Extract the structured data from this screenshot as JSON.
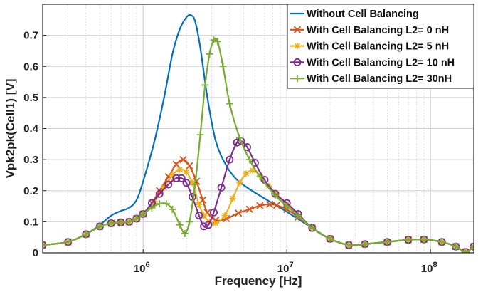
{
  "chart_data": {
    "type": "line",
    "xscale": "log",
    "xlabel": "Frequency [Hz]",
    "ylabel": "Vpk2pk(Cell1) [V]",
    "xlim": [
      200000,
      200000000
    ],
    "ylim": [
      0,
      0.8
    ],
    "grid": true,
    "legend_position": "top-right",
    "x_ticks": [
      {
        "value": 1000000,
        "base": "10",
        "exp": "6"
      },
      {
        "value": 10000000,
        "base": "10",
        "exp": "7"
      },
      {
        "value": 100000000,
        "base": "10",
        "exp": "8"
      }
    ],
    "y_ticks": [
      {
        "value": 0,
        "label": "0"
      },
      {
        "value": 0.1,
        "label": "0.1"
      },
      {
        "value": 0.2,
        "label": "0.2"
      },
      {
        "value": 0.3,
        "label": "0.3"
      },
      {
        "value": 0.4,
        "label": "0.4"
      },
      {
        "value": 0.5,
        "label": "0.5"
      },
      {
        "value": 0.6,
        "label": "0.6"
      },
      {
        "value": 0.7,
        "label": "0.7"
      }
    ],
    "series": [
      {
        "name": "Without Cell Balancing",
        "color": "#0072BD",
        "marker": "none",
        "x": [
          200000,
          300000,
          400000,
          500000,
          600000,
          700000,
          800000,
          900000,
          1000000,
          1200000,
          1400000,
          1600000,
          1800000,
          2000000,
          2150000,
          2300000,
          2500000,
          2800000,
          3200000,
          3800000,
          4500000,
          5500000,
          7000000,
          9000000,
          11000000,
          15000000,
          20000000,
          27000000,
          35000000,
          50000000,
          70000000,
          90000000,
          120000000,
          150000000,
          175000000,
          200000000
        ],
        "y": [
          0.025,
          0.035,
          0.06,
          0.09,
          0.12,
          0.135,
          0.145,
          0.17,
          0.23,
          0.36,
          0.5,
          0.64,
          0.72,
          0.758,
          0.765,
          0.745,
          0.66,
          0.5,
          0.36,
          0.28,
          0.235,
          0.205,
          0.175,
          0.145,
          0.12,
          0.08,
          0.045,
          0.025,
          0.028,
          0.035,
          0.042,
          0.043,
          0.035,
          0.02,
          0.003,
          0.02
        ]
      },
      {
        "name": "With Cell Balancing L2= 0 nH",
        "color": "#D95319",
        "marker": "x",
        "x": [
          200000,
          300000,
          400000,
          500000,
          600000,
          700000,
          800000,
          900000,
          1000000,
          1150000,
          1300000,
          1500000,
          1700000,
          1900000,
          2100000,
          2350000,
          2600000,
          2800000,
          3200000,
          3800000,
          4600000,
          5500000,
          6500000,
          7600000,
          8500000,
          10000000,
          12000000,
          15000000,
          20000000,
          27000000,
          35000000,
          50000000,
          70000000,
          90000000,
          120000000,
          150000000,
          175000000,
          200000000
        ],
        "y": [
          0.025,
          0.035,
          0.06,
          0.085,
          0.095,
          0.098,
          0.1,
          0.11,
          0.125,
          0.16,
          0.2,
          0.245,
          0.285,
          0.3,
          0.28,
          0.23,
          0.17,
          0.13,
          0.105,
          0.11,
          0.128,
          0.14,
          0.152,
          0.156,
          0.153,
          0.14,
          0.115,
          0.08,
          0.045,
          0.025,
          0.028,
          0.035,
          0.042,
          0.043,
          0.035,
          0.02,
          0.003,
          0.02
        ]
      },
      {
        "name": "With Cell Balancing L2= 5 nH",
        "color": "#EDB120",
        "marker": "*",
        "x": [
          200000,
          300000,
          400000,
          500000,
          600000,
          700000,
          800000,
          900000,
          1000000,
          1200000,
          1400000,
          1600000,
          1800000,
          2000000,
          2200000,
          2450000,
          2650000,
          2900000,
          3200000,
          3700000,
          4200000,
          4700000,
          5200000,
          5800000,
          6500000,
          7500000,
          8500000,
          10000000,
          12000000,
          15000000,
          20000000,
          27000000,
          35000000,
          50000000,
          70000000,
          90000000,
          120000000,
          150000000,
          175000000,
          200000000
        ],
        "y": [
          0.025,
          0.035,
          0.06,
          0.085,
          0.095,
          0.098,
          0.1,
          0.11,
          0.125,
          0.165,
          0.21,
          0.25,
          0.268,
          0.26,
          0.225,
          0.155,
          0.12,
          0.1,
          0.095,
          0.12,
          0.175,
          0.225,
          0.255,
          0.265,
          0.25,
          0.215,
          0.19,
          0.155,
          0.12,
          0.08,
          0.045,
          0.025,
          0.028,
          0.035,
          0.042,
          0.043,
          0.035,
          0.02,
          0.003,
          0.02
        ]
      },
      {
        "name": "With Cell Balancing L2= 10 nH",
        "color": "#7E2F8E",
        "marker": "o",
        "x": [
          200000,
          300000,
          400000,
          500000,
          600000,
          700000,
          800000,
          900000,
          1000000,
          1150000,
          1300000,
          1500000,
          1700000,
          1850000,
          2000000,
          2200000,
          2450000,
          2650000,
          2850000,
          3100000,
          3500000,
          4000000,
          4500000,
          4800000,
          5300000,
          6000000,
          7000000,
          8300000,
          10000000,
          12000000,
          15000000,
          20000000,
          27000000,
          35000000,
          50000000,
          70000000,
          90000000,
          120000000,
          150000000,
          175000000,
          200000000
        ],
        "y": [
          0.025,
          0.035,
          0.06,
          0.085,
          0.095,
          0.098,
          0.1,
          0.11,
          0.125,
          0.16,
          0.19,
          0.22,
          0.24,
          0.24,
          0.225,
          0.18,
          0.12,
          0.085,
          0.09,
          0.13,
          0.21,
          0.3,
          0.355,
          0.36,
          0.34,
          0.29,
          0.235,
          0.19,
          0.16,
          0.125,
          0.08,
          0.045,
          0.025,
          0.028,
          0.035,
          0.042,
          0.043,
          0.035,
          0.02,
          0.003,
          0.02
        ]
      },
      {
        "name": "With Cell Balancing L2= 30nH",
        "color": "#77AC30",
        "marker": "+",
        "x": [
          200000,
          300000,
          400000,
          500000,
          600000,
          700000,
          800000,
          900000,
          1000000,
          1150000,
          1300000,
          1450000,
          1600000,
          1800000,
          1950000,
          2100000,
          2300000,
          2500000,
          2700000,
          2900000,
          3100000,
          3300000,
          3600000,
          4000000,
          4700000,
          5500000,
          6500000,
          8300000,
          10000000,
          12000000,
          15000000,
          20000000,
          27000000,
          35000000,
          50000000,
          70000000,
          90000000,
          120000000,
          150000000,
          175000000,
          200000000
        ],
        "y": [
          0.025,
          0.035,
          0.06,
          0.085,
          0.095,
          0.098,
          0.1,
          0.11,
          0.125,
          0.145,
          0.158,
          0.158,
          0.14,
          0.09,
          0.062,
          0.1,
          0.22,
          0.38,
          0.54,
          0.64,
          0.685,
          0.68,
          0.6,
          0.48,
          0.37,
          0.3,
          0.245,
          0.185,
          0.15,
          0.12,
          0.08,
          0.045,
          0.025,
          0.028,
          0.035,
          0.042,
          0.043,
          0.035,
          0.02,
          0.003,
          0.02
        ]
      }
    ]
  }
}
